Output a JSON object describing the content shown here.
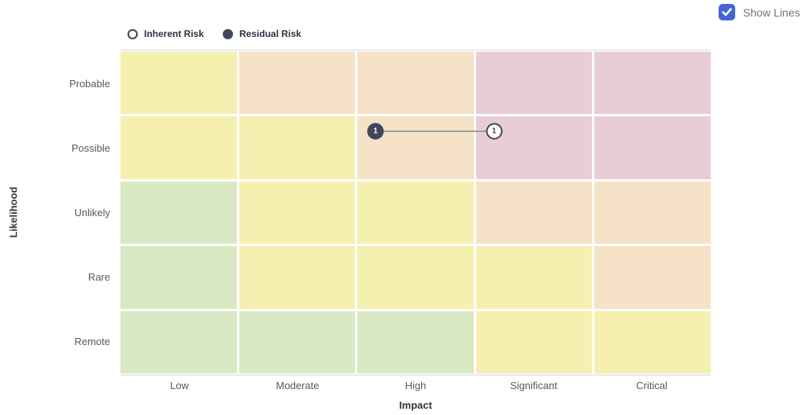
{
  "controls": {
    "show_lines": {
      "label": "Show Lines",
      "checked": true,
      "checkbox_color": "#4363d8"
    }
  },
  "legend": {
    "items": [
      {
        "label": "Inherent Risk",
        "style": "open"
      },
      {
        "label": "Residual Risk",
        "style": "filled"
      }
    ]
  },
  "chart_data": {
    "type": "heatmap",
    "title": "",
    "x_axis": {
      "title": "Impact",
      "categories": [
        "Low",
        "Moderate",
        "High",
        "Significant",
        "Critical"
      ]
    },
    "y_axis": {
      "title": "Likelihood",
      "categories": [
        "Probable",
        "Possible",
        "Unlikely",
        "Rare",
        "Remote"
      ]
    },
    "severity_palette": {
      "green": "#d8e9c4",
      "yellow": "#f5f0b0",
      "tan": "#f5e2c7",
      "pink": "#e9cdd4"
    },
    "cells": [
      [
        "yellow",
        "tan",
        "tan",
        "pink",
        "pink"
      ],
      [
        "yellow",
        "yellow",
        "tan",
        "pink",
        "pink"
      ],
      [
        "green",
        "yellow",
        "yellow",
        "tan",
        "tan"
      ],
      [
        "green",
        "yellow",
        "yellow",
        "yellow",
        "tan"
      ],
      [
        "green",
        "green",
        "green",
        "yellow",
        "yellow"
      ]
    ],
    "points": [
      {
        "label": "1",
        "series": "Inherent Risk",
        "style": "open",
        "impact": "Significant",
        "likelihood": "Possible",
        "col": 3,
        "row": 1
      },
      {
        "label": "1",
        "series": "Residual Risk",
        "style": "filled",
        "impact": "High",
        "likelihood": "Possible",
        "col": 2,
        "row": 1
      }
    ],
    "connectors": [
      {
        "from": 1,
        "to": 0
      }
    ],
    "marker_color": "#3e4859",
    "connector_color": "#9b9b9b",
    "show_lines": true,
    "grid": true,
    "legend_position": "top-left"
  }
}
